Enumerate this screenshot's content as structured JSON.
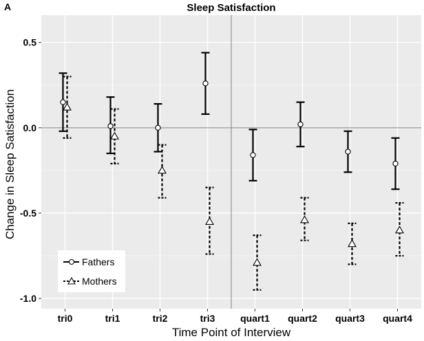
{
  "panel_letter": "A",
  "chart_data": {
    "type": "scatter",
    "title": "Sleep Satisfaction",
    "xlabel": "Time Point of Interview",
    "ylabel": "Change in Sleep Satisfaction",
    "categories": [
      "tri0",
      "tri1",
      "tri2",
      "tri3",
      "quart1",
      "quart2",
      "quart3",
      "quart4"
    ],
    "yticks": [
      0.5,
      0.0,
      -0.5,
      -1.0
    ],
    "ytick_labels": [
      "0.5",
      "0.0",
      "-0.5",
      "-1.0"
    ],
    "ylim": [
      -1.06,
      0.66
    ],
    "reference_line_y": 0.0,
    "divider_between": [
      "tri3",
      "quart1"
    ],
    "grid": true,
    "legend_position": "bottom-left",
    "series": [
      {
        "name": "Fathers",
        "marker": "circle",
        "line_style": "solid",
        "values": [
          0.15,
          0.01,
          0.0,
          0.26,
          -0.16,
          0.02,
          -0.14,
          -0.21
        ],
        "lower": [
          -0.02,
          -0.15,
          -0.14,
          0.08,
          -0.31,
          -0.11,
          -0.26,
          -0.36
        ],
        "upper": [
          0.32,
          0.18,
          0.14,
          0.44,
          -0.01,
          0.15,
          -0.02,
          -0.06
        ]
      },
      {
        "name": "Mothers",
        "marker": "triangle",
        "line_style": "dashed",
        "values": [
          0.12,
          -0.05,
          -0.25,
          -0.55,
          -0.79,
          -0.54,
          -0.68,
          -0.6
        ],
        "lower": [
          -0.06,
          -0.21,
          -0.41,
          -0.74,
          -0.95,
          -0.66,
          -0.8,
          -0.75
        ],
        "upper": [
          0.3,
          0.11,
          -0.1,
          -0.35,
          -0.63,
          -0.41,
          -0.56,
          -0.44
        ]
      }
    ],
    "colors": {
      "panel_bg": "#ebebeb",
      "grid_major": "#ffffff",
      "grid_minor": "#f4f4f4",
      "ink": "#000000",
      "reference_line": "#7f7f7f"
    }
  }
}
